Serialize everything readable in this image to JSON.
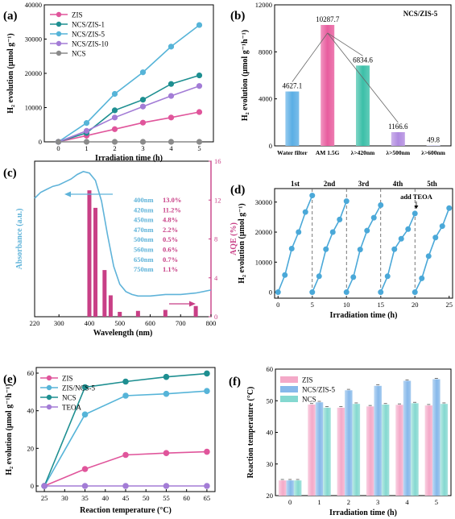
{
  "chart_data": [
    {
      "panel": "(a)",
      "type": "line",
      "xlabel": "Irradiation time (h)",
      "ylabel": "H₂ evolution (μmol g⁻¹)",
      "xlim": [
        -0.5,
        5.5
      ],
      "ylim": [
        0,
        40000
      ],
      "xticks": [
        0,
        1,
        2,
        3,
        4,
        5
      ],
      "yticks": [
        0,
        10000,
        20000,
        30000,
        40000
      ],
      "legend_position": "top-left",
      "x": [
        0,
        1,
        2,
        3,
        4,
        5
      ],
      "series": [
        {
          "name": "ZIS",
          "color": "#e0559b",
          "values": [
            0,
            1800,
            3700,
            5600,
            7100,
            8700
          ]
        },
        {
          "name": "NCS/ZIS-1",
          "color": "#1e8f91",
          "values": [
            0,
            2600,
            9200,
            12300,
            16900,
            19400
          ]
        },
        {
          "name": "NCS/ZIS-5",
          "color": "#56b4d8",
          "values": [
            0,
            5500,
            14000,
            20300,
            27800,
            34100
          ]
        },
        {
          "name": "NCS/ZIS-10",
          "color": "#a37cd6",
          "values": [
            0,
            3200,
            7100,
            10300,
            13400,
            16300
          ]
        },
        {
          "name": "NCS",
          "color": "#8a8a8a",
          "values": [
            0,
            0,
            0,
            0,
            0,
            0
          ]
        }
      ]
    },
    {
      "panel": "(b)",
      "type": "bar",
      "title": "NCS/ZIS-5",
      "ylabel": "H₂ evolution (μmol g⁻¹h⁻¹)",
      "ylim": [
        0,
        12000
      ],
      "yticks": [
        0,
        4000,
        8000,
        12000
      ],
      "categories": [
        "Water filter",
        "AM 1.5G",
        "λ>420nm",
        "λ>500nm",
        "λ>600nm"
      ],
      "values": [
        4627.1,
        10287.7,
        6834.6,
        1166.6,
        49.8
      ],
      "value_labels": [
        "4627.1",
        "10287.7",
        "6834.6",
        "1166.6",
        "49.8"
      ],
      "colors": [
        "#5aaee5",
        "#e85c9e",
        "#3bbfa8",
        "#b08ae0",
        "#c7c7f0"
      ]
    },
    {
      "panel": "(c)",
      "type": "line",
      "xlabel": "Wavelength (nm)",
      "ylabel": "Absorbance (a.u.)",
      "y2label": "AQE (%)",
      "xlim": [
        220,
        800
      ],
      "y2lim": [
        0,
        16
      ],
      "xticks": [
        220,
        300,
        400,
        500,
        600,
        700,
        800
      ],
      "y2ticks": [
        0,
        4,
        8,
        12,
        16
      ],
      "absorbance_curve": {
        "x": [
          220,
          240,
          260,
          280,
          300,
          320,
          340,
          360,
          380,
          400,
          420,
          440,
          460,
          480,
          500,
          520,
          540,
          560,
          600,
          650,
          700,
          750,
          800
        ],
        "y": [
          0.8,
          0.84,
          0.86,
          0.88,
          0.89,
          0.91,
          0.93,
          0.96,
          0.98,
          0.97,
          0.92,
          0.78,
          0.55,
          0.34,
          0.22,
          0.17,
          0.15,
          0.14,
          0.14,
          0.15,
          0.15,
          0.16,
          0.18
        ]
      },
      "aqe": {
        "wavelengths": [
          400,
          420,
          450,
          470,
          500,
          560,
          650,
          750
        ],
        "values": [
          13.0,
          11.2,
          4.8,
          2.2,
          0.5,
          0.6,
          0.7,
          1.1
        ],
        "labels": [
          "400nm",
          "420nm",
          "450nm",
          "470nm",
          "500nm",
          "560nm",
          "650nm",
          "750nm"
        ],
        "value_labels": [
          "13.0%",
          "11.2%",
          "4.8%",
          "2.2%",
          "0.5%",
          "0.6%",
          "0.7%",
          "1.1%"
        ]
      },
      "colors": {
        "absorbance": "#5fb3d9",
        "aqe": "#c83f86"
      }
    },
    {
      "panel": "(d)",
      "type": "line",
      "xlabel": "Irradiation time (h)",
      "ylabel": "H₂ evolution (μmol g⁻¹)",
      "xlim": [
        -0.5,
        25.5
      ],
      "ylim": [
        -2000,
        34500
      ],
      "xticks": [
        0,
        5,
        10,
        15,
        20,
        25
      ],
      "yticks": [
        0,
        10000,
        20000,
        30000
      ],
      "cycle_labels": [
        "1st",
        "2nd",
        "3rd",
        "4th",
        "5th"
      ],
      "annotation": "add TEOA",
      "cycle_boundaries": [
        5,
        10,
        15,
        20
      ],
      "color": "#4aa8d8",
      "cycles": [
        {
          "x": [
            0,
            1,
            2,
            3,
            4,
            5
          ],
          "y": [
            0,
            5700,
            14500,
            20000,
            26700,
            32200
          ]
        },
        {
          "x": [
            5,
            6,
            7,
            8,
            9,
            10
          ],
          "y": [
            0,
            5300,
            14300,
            20000,
            24200,
            30300
          ]
        },
        {
          "x": [
            10,
            11,
            12,
            13,
            14,
            15
          ],
          "y": [
            0,
            5000,
            14200,
            20500,
            24800,
            29000
          ]
        },
        {
          "x": [
            15,
            16,
            17,
            18,
            19,
            20
          ],
          "y": [
            0,
            5300,
            14300,
            17800,
            21000,
            26200
          ]
        },
        {
          "x": [
            20,
            21,
            22,
            23,
            24,
            25
          ],
          "y": [
            0,
            4600,
            12000,
            18200,
            22000,
            28000
          ]
        }
      ]
    },
    {
      "panel": "(e)",
      "type": "line",
      "xlabel": "Reaction temperature (°C)",
      "ylabel": "H₂ evolution (μmol g⁻¹h⁻¹)",
      "xlim": [
        23,
        67
      ],
      "ylim": [
        -3,
        63
      ],
      "xticks": [
        25,
        30,
        35,
        40,
        45,
        50,
        55,
        60,
        65
      ],
      "yticks": [
        0,
        20,
        40,
        60
      ],
      "legend_position": "top-left",
      "x": [
        25,
        35,
        45,
        55,
        65
      ],
      "series": [
        {
          "name": "ZIS",
          "color": "#e0559b",
          "values": [
            0,
            9,
            16.5,
            17.5,
            18.2
          ]
        },
        {
          "name": "ZIS/NCS-5",
          "color": "#56b4d8",
          "values": [
            0,
            38,
            48,
            49,
            50.5
          ]
        },
        {
          "name": "NCS",
          "color": "#1e8f91",
          "values": [
            0,
            52.5,
            55.5,
            58,
            59.8
          ]
        },
        {
          "name": "TEOA",
          "color": "#a37cd6",
          "values": [
            0,
            0,
            0,
            0,
            0
          ]
        }
      ]
    },
    {
      "panel": "(f)",
      "type": "bar",
      "xlabel": "Irradiation time (h)",
      "ylabel": "Reaction temperature (°C)",
      "ylim": [
        20,
        60
      ],
      "yticks": [
        20,
        30,
        40,
        50,
        60
      ],
      "categories": [
        "0",
        "1",
        "2",
        "3",
        "4",
        "5"
      ],
      "legend_position": "top-left",
      "series": [
        {
          "name": "ZIS",
          "color": "#f4a9c8",
          "values": [
            24.8,
            48.8,
            47.8,
            48.2,
            48.7,
            48.5
          ]
        },
        {
          "name": "NCS/ZIS-5",
          "color": "#86b8ea",
          "values": [
            24.8,
            49.5,
            53.3,
            54.7,
            56.3,
            56.8
          ]
        },
        {
          "name": "NCS",
          "color": "#84d8d0",
          "values": [
            24.8,
            47.8,
            49.0,
            48.8,
            49.2,
            49.0
          ]
        }
      ]
    }
  ]
}
